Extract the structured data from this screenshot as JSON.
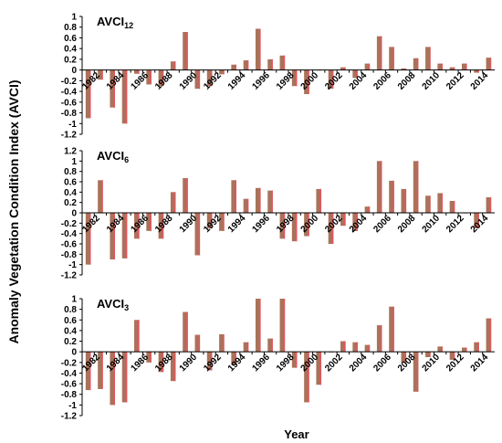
{
  "ylabel": "Anomaly Vegetation Condition Index (AVCI)",
  "xlabel": "Year",
  "colors": {
    "bar_fill": "#a8735a",
    "bar_edge": "#e0565e",
    "axis": "#000000"
  },
  "years": [
    1982,
    1983,
    1984,
    1985,
    1986,
    1987,
    1988,
    1989,
    1990,
    1991,
    1992,
    1993,
    1994,
    1995,
    1996,
    1997,
    1998,
    1999,
    2000,
    2001,
    2002,
    2003,
    2004,
    2005,
    2006,
    2007,
    2008,
    2009,
    2010,
    2011,
    2012,
    2013,
    2014,
    2015
  ],
  "chart_data": [
    {
      "type": "bar",
      "label_main": "AVCI",
      "label_sub": "12",
      "ylim": [
        -1.2,
        1
      ],
      "yticks": [
        "1",
        "0.8",
        "0.6",
        "0.4",
        "0.2",
        "0",
        "-0.2",
        "-0.4",
        "-0.6",
        "-0.8",
        "-1",
        "-1.2"
      ],
      "xticks": [
        "1982",
        "1984",
        "1986",
        "1988",
        "1990",
        "1992",
        "1994",
        "1996",
        "1998",
        "2000",
        "2002",
        "2004",
        "2006",
        "2008",
        "2010",
        "2012",
        "2014"
      ],
      "values": [
        -0.9,
        -0.18,
        -0.7,
        -1.0,
        -0.07,
        -0.27,
        -0.3,
        0.16,
        0.71,
        -0.35,
        -0.3,
        -0.08,
        0.1,
        0.18,
        0.77,
        0.2,
        0.27,
        -0.3,
        -0.45,
        0.0,
        -0.35,
        0.05,
        -0.15,
        0.12,
        0.63,
        0.43,
        0.03,
        0.22,
        0.43,
        0.12,
        0.05,
        0.12,
        -0.05,
        0.23
      ]
    },
    {
      "type": "bar",
      "label_main": "AVCI",
      "label_sub": "6",
      "ylim": [
        -1.2,
        1.2
      ],
      "yticks": [
        "1.2",
        "1",
        "0.8",
        "0.6",
        "0.4",
        "0.2",
        "0",
        "-0.2",
        "-0.4",
        "-0.6",
        "-0.8",
        "-1",
        "-1.2"
      ],
      "xticks": [
        "1982",
        "1984",
        "1986",
        "1988",
        "1990",
        "1992",
        "1994",
        "1996",
        "1998",
        "2000",
        "2002",
        "2004",
        "2006",
        "2008",
        "2010",
        "2012",
        "2014"
      ],
      "values": [
        -1.0,
        0.63,
        -0.9,
        -0.88,
        -0.5,
        -0.35,
        -0.5,
        0.4,
        0.67,
        -0.82,
        -0.3,
        -0.35,
        0.63,
        0.27,
        0.48,
        0.43,
        -0.5,
        -0.55,
        -0.45,
        0.46,
        -0.6,
        -0.25,
        -0.35,
        0.12,
        1.0,
        0.62,
        0.46,
        1.0,
        0.33,
        0.38,
        0.23,
        0.0,
        -0.3,
        0.3
      ]
    },
    {
      "type": "bar",
      "label_main": "AVCI",
      "label_sub": "3",
      "ylim": [
        -1.2,
        1
      ],
      "yticks": [
        "1",
        "0.8",
        "0.6",
        "0.4",
        "0.2",
        "0",
        "-0.2",
        "-0.4",
        "-0.6",
        "-0.8",
        "-1",
        "-1.2"
      ],
      "xticks": [
        "1982",
        "1984",
        "1986",
        "1988",
        "1990",
        "1992",
        "1994",
        "1996",
        "1998",
        "2000",
        "2002",
        "2004",
        "2006",
        "2008",
        "2010",
        "2012",
        "2014"
      ],
      "values": [
        -0.72,
        -0.7,
        -1.0,
        -0.95,
        0.6,
        -0.2,
        -0.38,
        -0.55,
        0.75,
        0.32,
        -0.35,
        0.33,
        -0.25,
        0.18,
        1.0,
        0.25,
        1.0,
        -0.3,
        -0.95,
        -0.62,
        0.0,
        0.2,
        0.18,
        0.13,
        0.5,
        0.85,
        -0.2,
        -0.75,
        -0.1,
        0.1,
        -0.15,
        0.08,
        0.18,
        0.63
      ]
    }
  ]
}
